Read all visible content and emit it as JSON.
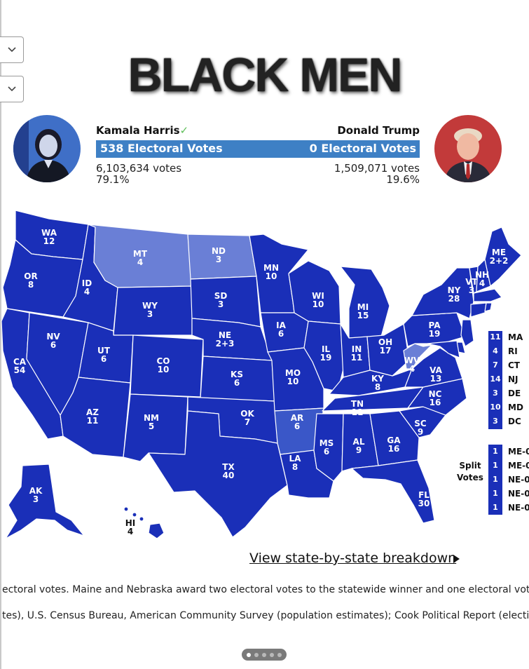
{
  "headline": "BLACK MEN",
  "candidates": {
    "harris": {
      "name": "Kamala Harris",
      "check": "✓",
      "electoral": "538 Electoral Votes",
      "votes": "6,103,634 votes",
      "percent": "79.1%"
    },
    "trump": {
      "name": "Donald Trump",
      "electoral": "0 Electoral Votes",
      "votes": "1,509,071 votes",
      "percent": "19.6%"
    }
  },
  "colors": {
    "dem": "#1a2fb8",
    "dem_light": "#6a7fd6",
    "dem_mid": "#3a57c8",
    "bar": "#3e80c5",
    "leader_check": "#5fbf5a"
  },
  "map": {
    "states": [
      {
        "abbr": "WA",
        "ev": "12"
      },
      {
        "abbr": "OR",
        "ev": "8"
      },
      {
        "abbr": "CA",
        "ev": "54"
      },
      {
        "abbr": "NV",
        "ev": "6"
      },
      {
        "abbr": "ID",
        "ev": "4"
      },
      {
        "abbr": "MT",
        "ev": "4"
      },
      {
        "abbr": "WY",
        "ev": "3"
      },
      {
        "abbr": "UT",
        "ev": "6"
      },
      {
        "abbr": "AZ",
        "ev": "11"
      },
      {
        "abbr": "CO",
        "ev": "10"
      },
      {
        "abbr": "NM",
        "ev": "5"
      },
      {
        "abbr": "ND",
        "ev": "3"
      },
      {
        "abbr": "SD",
        "ev": "3"
      },
      {
        "abbr": "NE",
        "ev": "2+3"
      },
      {
        "abbr": "KS",
        "ev": "6"
      },
      {
        "abbr": "OK",
        "ev": "7"
      },
      {
        "abbr": "TX",
        "ev": "40"
      },
      {
        "abbr": "MN",
        "ev": "10"
      },
      {
        "abbr": "IA",
        "ev": "6"
      },
      {
        "abbr": "MO",
        "ev": "10"
      },
      {
        "abbr": "AR",
        "ev": "6"
      },
      {
        "abbr": "LA",
        "ev": "8"
      },
      {
        "abbr": "WI",
        "ev": "10"
      },
      {
        "abbr": "IL",
        "ev": "19"
      },
      {
        "abbr": "MS",
        "ev": "6"
      },
      {
        "abbr": "MI",
        "ev": "15"
      },
      {
        "abbr": "IN",
        "ev": "11"
      },
      {
        "abbr": "TN",
        "ev": "11"
      },
      {
        "abbr": "AL",
        "ev": "9"
      },
      {
        "abbr": "KY",
        "ev": "8"
      },
      {
        "abbr": "OH",
        "ev": "17"
      },
      {
        "abbr": "GA",
        "ev": "16"
      },
      {
        "abbr": "FL",
        "ev": "30"
      },
      {
        "abbr": "WV",
        "ev": "4"
      },
      {
        "abbr": "VA",
        "ev": "13"
      },
      {
        "abbr": "NC",
        "ev": "16"
      },
      {
        "abbr": "SC",
        "ev": "9"
      },
      {
        "abbr": "PA",
        "ev": "19"
      },
      {
        "abbr": "NY",
        "ev": "28"
      },
      {
        "abbr": "VT",
        "ev": "3"
      },
      {
        "abbr": "NH",
        "ev": "4"
      },
      {
        "abbr": "ME",
        "ev": "2+2"
      },
      {
        "abbr": "AK",
        "ev": "3"
      },
      {
        "abbr": "HI",
        "ev": "4"
      }
    ],
    "small_states": [
      {
        "abbr": "MA",
        "ev": "11"
      },
      {
        "abbr": "RI",
        "ev": "4"
      },
      {
        "abbr": "CT",
        "ev": "7"
      },
      {
        "abbr": "NJ",
        "ev": "14"
      },
      {
        "abbr": "DE",
        "ev": "3"
      },
      {
        "abbr": "MD",
        "ev": "10"
      },
      {
        "abbr": "DC",
        "ev": "3"
      }
    ],
    "split_label_1": "Split",
    "split_label_2": "Votes",
    "split_votes": [
      {
        "abbr": "ME-0",
        "ev": "1"
      },
      {
        "abbr": "ME-0",
        "ev": "1"
      },
      {
        "abbr": "NE-0",
        "ev": "1"
      },
      {
        "abbr": "NE-0",
        "ev": "1"
      },
      {
        "abbr": "NE-0",
        "ev": "1"
      }
    ]
  },
  "breakdown_link": "View state-by-state breakdown",
  "notes": {
    "line1": "ectoral votes. Maine and Nebraska award two electoral votes to the statewide winner and one electoral vote to",
    "line2": "tes), U.S. Census Bureau, American Community Survey (population estimates); Cook Political Report (election"
  }
}
